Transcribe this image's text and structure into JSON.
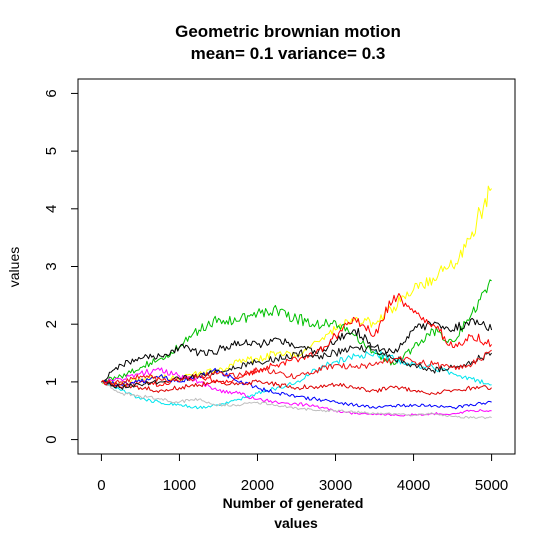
{
  "chart_data": {
    "type": "line",
    "title": "Geometric brownian motion",
    "subtitle": "mean= 0.1 variance= 0.3",
    "xlabel_line1": "Number of generated",
    "xlabel_line2": "values",
    "ylabel": "values",
    "xlim": [
      -300,
      5300
    ],
    "ylim": [
      -0.25,
      6.25
    ],
    "xticks": [
      0,
      1000,
      2000,
      3000,
      4000,
      5000
    ],
    "xtick_labels": [
      "0",
      "1000",
      "2000",
      "3000",
      "4000",
      "5000"
    ],
    "yticks": [
      0,
      1,
      2,
      3,
      4,
      5,
      6
    ],
    "ytick_labels": [
      "0",
      "1",
      "2",
      "3",
      "4",
      "5",
      "6"
    ],
    "grid": false,
    "legend": "none",
    "x": [
      0,
      250,
      500,
      750,
      1000,
      1250,
      1500,
      1750,
      2000,
      2250,
      2500,
      2750,
      3000,
      3250,
      3500,
      3750,
      4000,
      4250,
      4500,
      4750,
      5000
    ],
    "series": [
      {
        "color": "#ffff00",
        "values": [
          1.0,
          0.95,
          1.05,
          1.1,
          1.05,
          1.15,
          1.2,
          1.35,
          1.4,
          1.5,
          1.45,
          1.7,
          1.9,
          2.1,
          2.0,
          2.3,
          2.6,
          2.8,
          3.0,
          3.6,
          4.35
        ]
      },
      {
        "color": "#00c000",
        "values": [
          1.0,
          1.1,
          1.25,
          1.4,
          1.6,
          1.9,
          2.1,
          2.05,
          2.2,
          2.25,
          2.1,
          2.0,
          2.05,
          1.8,
          1.5,
          1.3,
          1.6,
          1.9,
          1.7,
          2.2,
          2.75
        ]
      },
      {
        "color": "#000000",
        "values": [
          1.0,
          1.3,
          1.4,
          1.45,
          1.6,
          1.5,
          1.55,
          1.7,
          1.65,
          1.75,
          1.6,
          1.5,
          1.7,
          1.9,
          1.6,
          1.5,
          1.9,
          2.0,
          1.9,
          2.1,
          1.9
        ]
      },
      {
        "color": "#ff0000",
        "values": [
          1.0,
          0.9,
          1.0,
          0.95,
          1.05,
          1.1,
          1.0,
          1.05,
          1.2,
          1.3,
          1.4,
          1.5,
          1.8,
          2.1,
          1.8,
          2.5,
          2.2,
          2.0,
          1.6,
          1.8,
          1.65
        ]
      },
      {
        "color": "#00e5ee",
        "values": [
          1.0,
          0.85,
          0.7,
          0.65,
          0.6,
          0.55,
          0.6,
          0.7,
          0.8,
          0.9,
          1.0,
          1.2,
          1.35,
          1.45,
          1.5,
          1.4,
          1.3,
          1.25,
          1.15,
          1.05,
          0.95
        ]
      },
      {
        "color": "#ff00ff",
        "values": [
          1.0,
          1.05,
          1.15,
          1.2,
          1.1,
          1.0,
          0.85,
          0.8,
          0.7,
          0.65,
          0.62,
          0.58,
          0.5,
          0.45,
          0.45,
          0.42,
          0.43,
          0.45,
          0.45,
          0.5,
          0.5
        ]
      },
      {
        "color": "#0000ff",
        "values": [
          1.0,
          0.95,
          1.0,
          1.1,
          1.0,
          1.1,
          1.2,
          1.0,
          0.9,
          0.8,
          0.75,
          0.7,
          0.65,
          0.6,
          0.55,
          0.58,
          0.6,
          0.58,
          0.55,
          0.6,
          0.65
        ]
      },
      {
        "color": "#bebebe",
        "values": [
          1.0,
          0.8,
          0.75,
          0.7,
          0.65,
          0.7,
          0.6,
          0.6,
          0.65,
          0.6,
          0.55,
          0.5,
          0.5,
          0.48,
          0.45,
          0.45,
          0.42,
          0.45,
          0.4,
          0.38,
          0.38
        ]
      },
      {
        "color": "#dd0000",
        "values": [
          1.0,
          0.95,
          0.9,
          0.85,
          0.9,
          0.95,
          1.0,
          0.95,
          1.0,
          0.95,
          0.9,
          0.92,
          0.95,
          0.9,
          0.85,
          0.9,
          0.85,
          0.8,
          0.85,
          0.9,
          0.9
        ]
      },
      {
        "color": "#111111",
        "values": [
          1.0,
          0.9,
          0.95,
          1.0,
          1.05,
          1.1,
          1.2,
          1.25,
          1.35,
          1.4,
          1.5,
          1.45,
          1.5,
          1.6,
          1.55,
          1.4,
          1.3,
          1.2,
          1.25,
          1.35,
          1.5
        ]
      },
      {
        "color": "#ee1111",
        "values": [
          1.0,
          1.0,
          1.1,
          1.05,
          1.0,
          1.1,
          1.15,
          1.1,
          1.2,
          1.15,
          1.1,
          1.2,
          1.3,
          1.25,
          1.3,
          1.4,
          1.35,
          1.3,
          1.25,
          1.3,
          1.55
        ]
      }
    ]
  }
}
